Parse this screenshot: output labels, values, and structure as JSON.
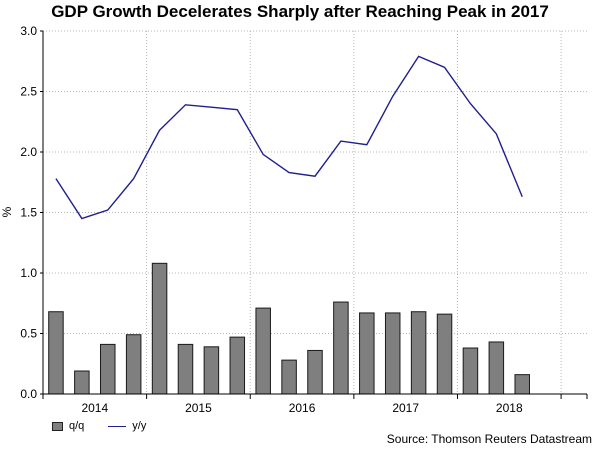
{
  "chart_data": {
    "type": "bar+line",
    "title": "GDP Growth Decelerates Sharply after Reaching Peak in 2017",
    "ylabel": "%",
    "xlabel": "",
    "ylim": [
      0,
      3.0
    ],
    "yticks": [
      "0.0",
      "0.5",
      "1.0",
      "1.5",
      "2.0",
      "2.5",
      "3.0"
    ],
    "x_tick_labels": [
      "2014",
      "2015",
      "2016",
      "2017",
      "2018"
    ],
    "periods": [
      "2014Q1",
      "2014Q2",
      "2014Q3",
      "2014Q4",
      "2015Q1",
      "2015Q2",
      "2015Q3",
      "2015Q4",
      "2016Q1",
      "2016Q2",
      "2016Q3",
      "2016Q4",
      "2017Q1",
      "2017Q2",
      "2017Q3",
      "2017Q4",
      "2018Q1",
      "2018Q2",
      "2018Q3"
    ],
    "series": [
      {
        "name": "q/q",
        "type": "bar",
        "color": "#7f7f7f",
        "values": [
          0.68,
          0.19,
          0.41,
          0.49,
          1.08,
          0.41,
          0.39,
          0.47,
          0.71,
          0.28,
          0.36,
          0.76,
          0.67,
          0.67,
          0.68,
          0.66,
          0.38,
          0.43,
          0.16
        ]
      },
      {
        "name": "y/y",
        "type": "line",
        "color": "#1f1f8f",
        "values": [
          1.78,
          1.45,
          1.52,
          1.78,
          2.18,
          2.39,
          2.37,
          2.35,
          1.98,
          1.83,
          1.8,
          2.09,
          2.06,
          2.46,
          2.79,
          2.7,
          2.4,
          2.15,
          1.63
        ]
      }
    ],
    "legend": [
      "q/q",
      "y/y"
    ],
    "legend_position": "bottom-left",
    "grid": true
  },
  "source": "Source: Thomson Reuters Datastream"
}
